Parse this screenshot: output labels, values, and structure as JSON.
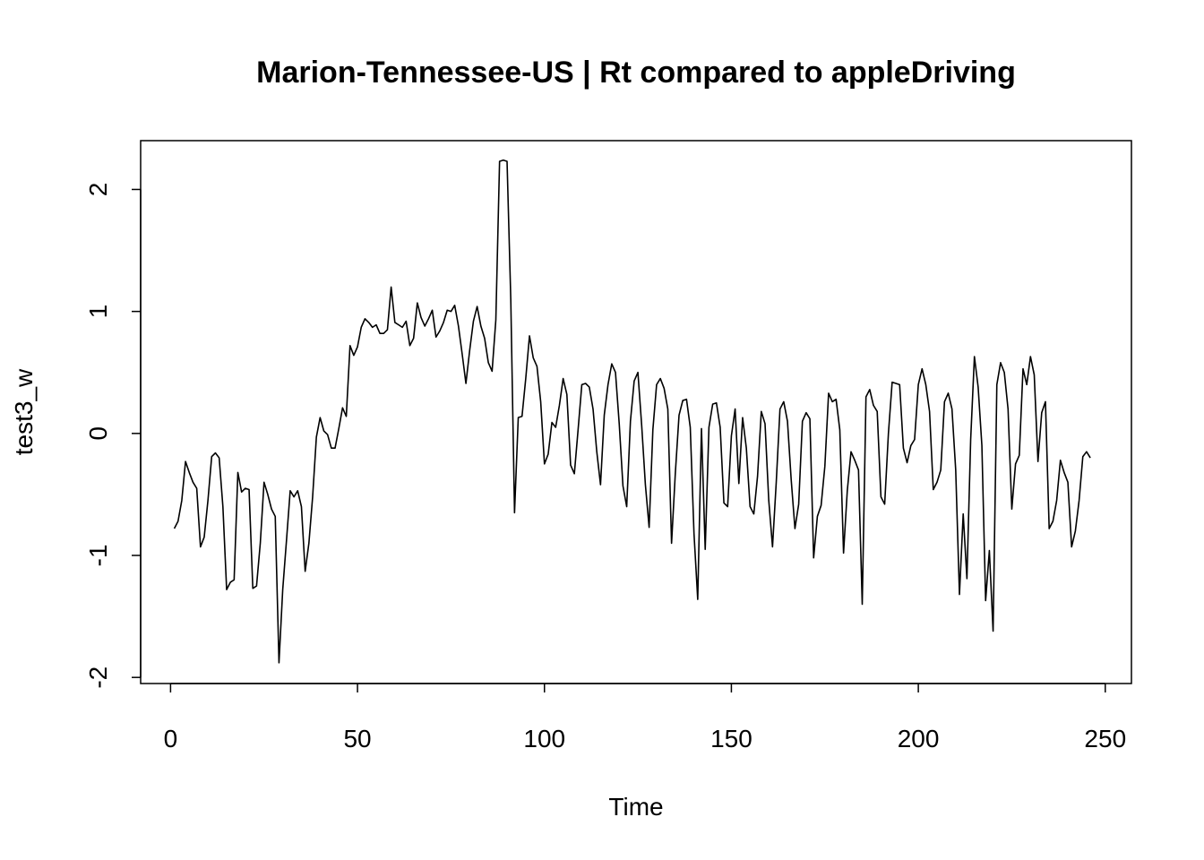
{
  "chart_data": {
    "type": "line",
    "title": "Marion-Tennessee-US | Rt compared to appleDriving",
    "xlabel": "Time",
    "ylabel": "test3_w",
    "xlim": [
      -8,
      257
    ],
    "ylim": [
      -2.05,
      2.4
    ],
    "x_ticks": [
      0,
      50,
      100,
      150,
      200,
      250
    ],
    "y_ticks": [
      -2,
      -1,
      0,
      1,
      2
    ],
    "grid": false,
    "legend": "none",
    "line_color": "#000000",
    "x_start": 1,
    "series": [
      {
        "values": [
          -0.78,
          -0.72,
          -0.55,
          -0.23,
          -0.32,
          -0.4,
          -0.45,
          -0.93,
          -0.85,
          -0.55,
          -0.19,
          -0.16,
          -0.2,
          -0.6,
          -1.28,
          -1.22,
          -1.2,
          -0.32,
          -0.48,
          -0.45,
          -0.46,
          -1.27,
          -1.25,
          -0.9,
          -0.4,
          -0.5,
          -0.62,
          -0.68,
          -1.88,
          -1.28,
          -0.88,
          -0.47,
          -0.52,
          -0.47,
          -0.6,
          -1.13,
          -0.9,
          -0.52,
          -0.03,
          0.13,
          0.02,
          -0.01,
          -0.12,
          -0.12,
          0.04,
          0.21,
          0.14,
          0.72,
          0.64,
          0.71,
          0.87,
          0.94,
          0.91,
          0.87,
          0.89,
          0.82,
          0.82,
          0.85,
          1.2,
          0.91,
          0.89,
          0.87,
          0.92,
          0.72,
          0.78,
          1.07,
          0.95,
          0.88,
          0.94,
          1.01,
          0.79,
          0.84,
          0.91,
          1.01,
          1.0,
          1.05,
          0.88,
          0.65,
          0.41,
          0.68,
          0.92,
          1.04,
          0.88,
          0.78,
          0.58,
          0.51,
          0.93,
          2.23,
          2.24,
          2.23,
          1.1,
          -0.65,
          0.13,
          0.14,
          0.45,
          0.8,
          0.62,
          0.55,
          0.26,
          -0.25,
          -0.17,
          0.09,
          0.05,
          0.23,
          0.45,
          0.32,
          -0.26,
          -0.33,
          0.03,
          0.4,
          0.41,
          0.38,
          0.2,
          -0.15,
          -0.42,
          0.15,
          0.4,
          0.57,
          0.5,
          0.08,
          -0.43,
          -0.6,
          0.1,
          0.43,
          0.5,
          0.07,
          -0.42,
          -0.77,
          0.03,
          0.4,
          0.45,
          0.37,
          0.2,
          -0.9,
          -0.33,
          0.15,
          0.27,
          0.28,
          0.05,
          -0.82,
          -1.36,
          0.04,
          -0.95,
          0.05,
          0.24,
          0.25,
          0.05,
          -0.57,
          -0.6,
          -0.02,
          0.2,
          -0.41,
          0.13,
          -0.12,
          -0.6,
          -0.66,
          -0.35,
          0.18,
          0.08,
          -0.55,
          -0.93,
          -0.4,
          0.2,
          0.26,
          0.1,
          -0.38,
          -0.78,
          -0.58,
          0.1,
          0.17,
          0.12,
          -1.02,
          -0.68,
          -0.59,
          -0.27,
          0.33,
          0.26,
          0.28,
          0.03,
          -0.98,
          -0.47,
          -0.15,
          -0.22,
          -0.3,
          -1.4,
          0.3,
          0.36,
          0.23,
          0.18,
          -0.52,
          -0.58,
          0.0,
          0.42,
          0.41,
          0.4,
          -0.12,
          -0.24,
          -0.1,
          -0.05,
          0.4,
          0.53,
          0.4,
          0.18,
          -0.46,
          -0.4,
          -0.3,
          0.26,
          0.33,
          0.2,
          -0.3,
          -1.32,
          -0.66,
          -1.19,
          -0.05,
          0.63,
          0.38,
          -0.1,
          -1.37,
          -0.96,
          -1.62,
          0.4,
          0.58,
          0.5,
          0.2,
          -0.62,
          -0.25,
          -0.18,
          0.53,
          0.4,
          0.63,
          0.48,
          -0.23,
          0.17,
          0.26,
          -0.78,
          -0.72,
          -0.55,
          -0.22,
          -0.32,
          -0.4,
          -0.93,
          -0.8,
          -0.55,
          -0.19,
          -0.15,
          -0.2
        ]
      }
    ]
  }
}
